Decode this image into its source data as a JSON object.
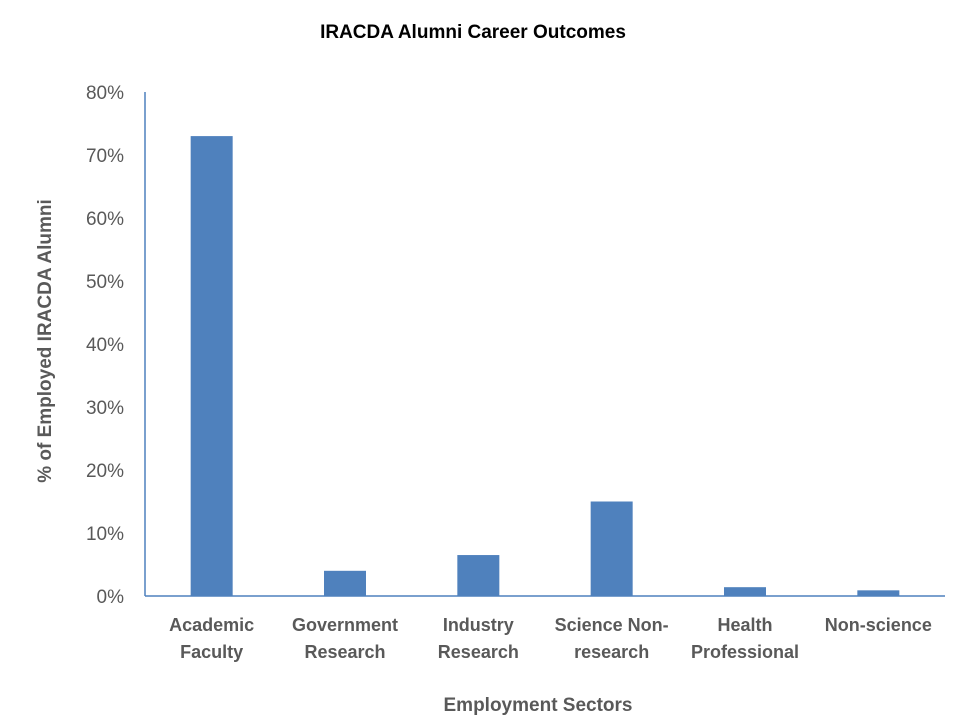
{
  "chart_data": {
    "type": "bar",
    "title": "IRACDA Alumni Career Outcomes",
    "xlabel": "Employment Sectors",
    "ylabel": "% of Employed IRACDA Alumni",
    "categories": [
      [
        "Academic",
        "Faculty"
      ],
      [
        "Government",
        "Research"
      ],
      [
        "Industry",
        "Research"
      ],
      [
        "Science Non-",
        "research"
      ],
      [
        "Health",
        "Professional"
      ],
      [
        "Non-science"
      ]
    ],
    "values": [
      73,
      4,
      6.5,
      15,
      1.4,
      0.9
    ],
    "ylim": [
      0,
      80
    ],
    "yticks": [
      "0%",
      "10%",
      "20%",
      "30%",
      "40%",
      "50%",
      "60%",
      "70%",
      "80%"
    ],
    "yticks_values": [
      0,
      10,
      20,
      30,
      40,
      50,
      60,
      70,
      80
    ],
    "bar_color": "#4f81bd",
    "axis_color": "#4f81bd",
    "grid": false,
    "legend": "none"
  }
}
